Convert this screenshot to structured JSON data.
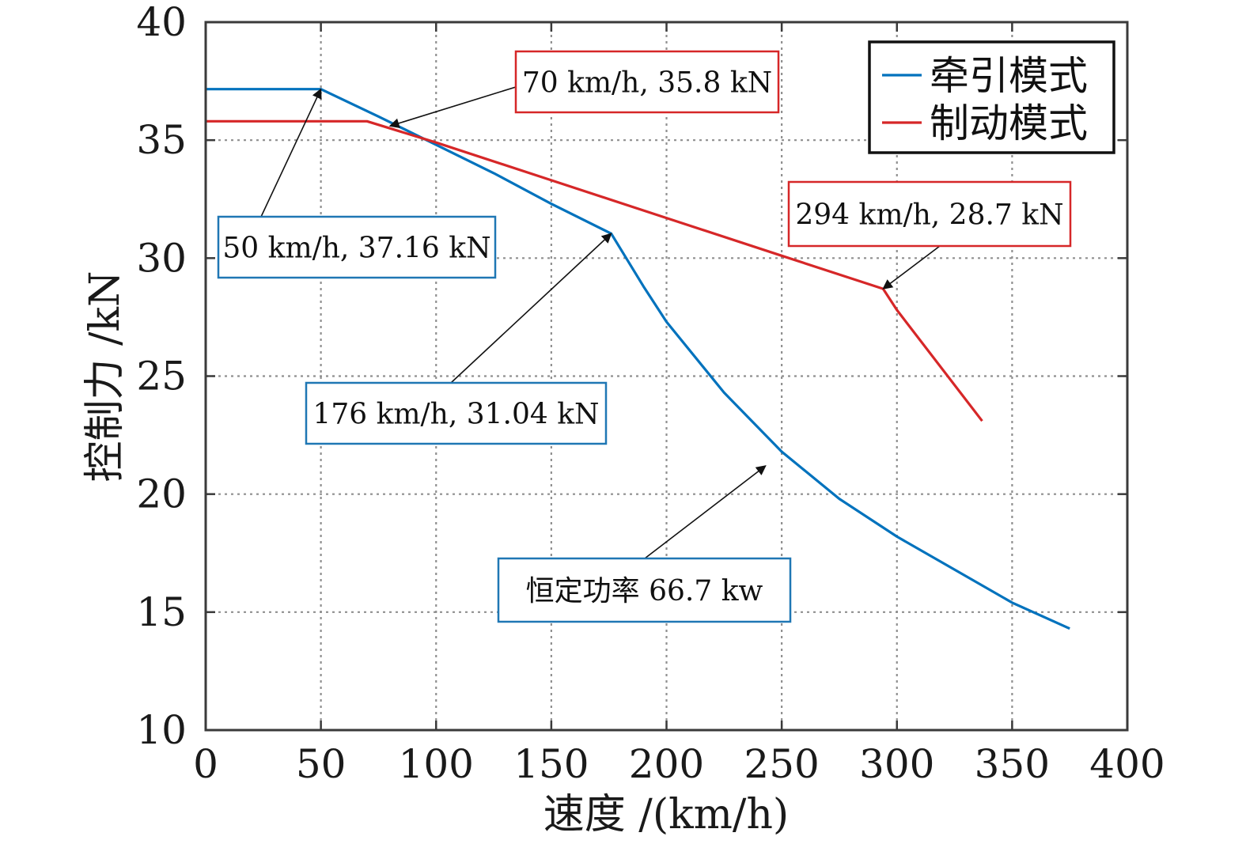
{
  "chart_data": {
    "type": "line",
    "title": "",
    "xlabel": "速度 /(km/h)",
    "ylabel": "控制力 /kN",
    "xlim": [
      0,
      400
    ],
    "ylim": [
      10,
      40
    ],
    "grid": true,
    "legend_position": "top-right",
    "x_ticks": [
      "0",
      "50",
      "100",
      "150",
      "200",
      "250",
      "300",
      "350",
      "400"
    ],
    "y_ticks": [
      "10",
      "15",
      "20",
      "25",
      "30",
      "35",
      "40"
    ],
    "colors": {
      "traction": "#0072bd",
      "braking": "#d62728",
      "frame": "#3a3a3a",
      "grid": "#8f8f8f",
      "annotation_blue_border": "#1f77b4",
      "annotation_red_border": "#d62728",
      "legend_border": "#111111"
    },
    "series": [
      {
        "name": "牵引模式",
        "color": "#0072bd",
        "x": [
          0,
          50,
          75,
          100,
          125,
          150,
          176,
          190,
          200,
          225,
          250,
          275,
          300,
          325,
          350,
          375
        ],
        "y": [
          37.16,
          37.16,
          36.0,
          34.8,
          33.6,
          32.3,
          31.04,
          28.8,
          27.3,
          24.3,
          21.8,
          19.8,
          18.2,
          16.8,
          15.4,
          14.3
        ]
      },
      {
        "name": "制动模式",
        "color": "#d62728",
        "x": [
          0,
          70,
          100,
          150,
          200,
          250,
          294,
          300,
          337
        ],
        "y": [
          35.8,
          35.8,
          34.9,
          33.3,
          31.7,
          30.1,
          28.7,
          27.8,
          23.1
        ]
      }
    ],
    "annotations": [
      {
        "id": "a1",
        "text": "70 km/h, 35.8 kN",
        "style": "red",
        "point": [
          80,
          35.6
        ]
      },
      {
        "id": "a2",
        "text": "50 km/h, 37.16 kN",
        "style": "blue",
        "point": [
          50,
          37.16
        ]
      },
      {
        "id": "a3",
        "text": "294 km/h, 28.7 kN",
        "style": "red",
        "point": [
          294,
          28.7
        ]
      },
      {
        "id": "a4",
        "text": "176 km/h, 31.04 kN",
        "style": "blue",
        "point": [
          176,
          31.04
        ]
      },
      {
        "id": "a5",
        "text": "恒定功率 66.7 kw",
        "style": "blue",
        "point": [
          243,
          21.2
        ]
      }
    ]
  }
}
